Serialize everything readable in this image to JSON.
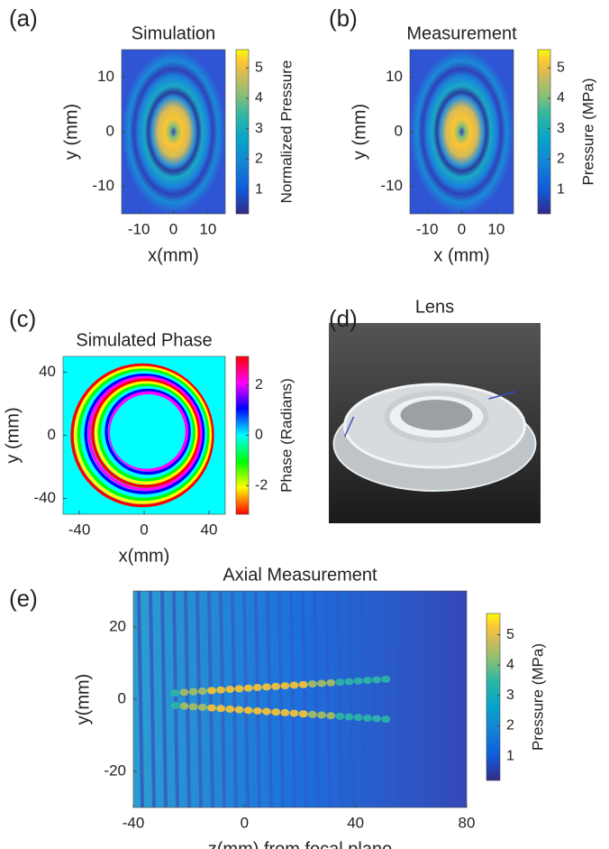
{
  "chart_data": [
    {
      "type": "heatmap",
      "panel_label": "(a)",
      "title": "Simulation",
      "x_label": "x(mm)",
      "y_label": "y (mm)",
      "xlim": [
        -15,
        15
      ],
      "ylim": [
        -15,
        15
      ],
      "xticks": [
        -10,
        0,
        10
      ],
      "yticks": [
        -10,
        0,
        10
      ],
      "pattern": "rings",
      "colormap": "parula",
      "colorbar": {
        "label": "Normalized Pressure",
        "lim": [
          0.2,
          5.6
        ],
        "ticks": [
          1,
          2,
          3,
          4,
          5
        ]
      }
    },
    {
      "type": "heatmap",
      "panel_label": "(b)",
      "title": "Measurement",
      "x_label": "x (mm)",
      "y_label": "y (mm)",
      "xlim": [
        -15,
        15
      ],
      "ylim": [
        -15,
        15
      ],
      "xticks": [
        -10,
        0,
        10
      ],
      "yticks": [
        -10,
        0,
        10
      ],
      "pattern": "rings",
      "colormap": "parula",
      "colorbar": {
        "label": "Pressure (MPa)",
        "lim": [
          0.2,
          5.6
        ],
        "ticks": [
          1,
          2,
          3,
          4,
          5
        ]
      }
    },
    {
      "type": "heatmap",
      "panel_label": "(c)",
      "title": "Simulated Phase",
      "x_label": "x(mm)",
      "y_label": "y (mm)",
      "xlim": [
        -50,
        50
      ],
      "ylim": [
        -50,
        50
      ],
      "xticks": [
        -40,
        0,
        40
      ],
      "yticks": [
        -40,
        0,
        40
      ],
      "pattern": "spiral",
      "colormap": "hsv",
      "colorbar": {
        "label": "Phase (Radians)",
        "lim": [
          -3.14,
          3.14
        ],
        "ticks": [
          -2,
          0,
          2
        ]
      }
    },
    {
      "type": "image",
      "panel_label": "(d)",
      "title": "Lens"
    },
    {
      "type": "heatmap",
      "panel_label": "(e)",
      "title": "Axial Measurement",
      "x_label": "z(mm) from focal plane",
      "y_label": "y(mm)",
      "xlim": [
        -40,
        80
      ],
      "ylim": [
        -30,
        30
      ],
      "xticks": [
        -40,
        0,
        40,
        80
      ],
      "yticks": [
        -20,
        0,
        20
      ],
      "pattern": "beam",
      "colormap": "parula",
      "colorbar": {
        "label": "Pressure (MPa)",
        "lim": [
          0.2,
          5.7
        ],
        "ticks": [
          1,
          2,
          3,
          4,
          5
        ]
      }
    }
  ]
}
